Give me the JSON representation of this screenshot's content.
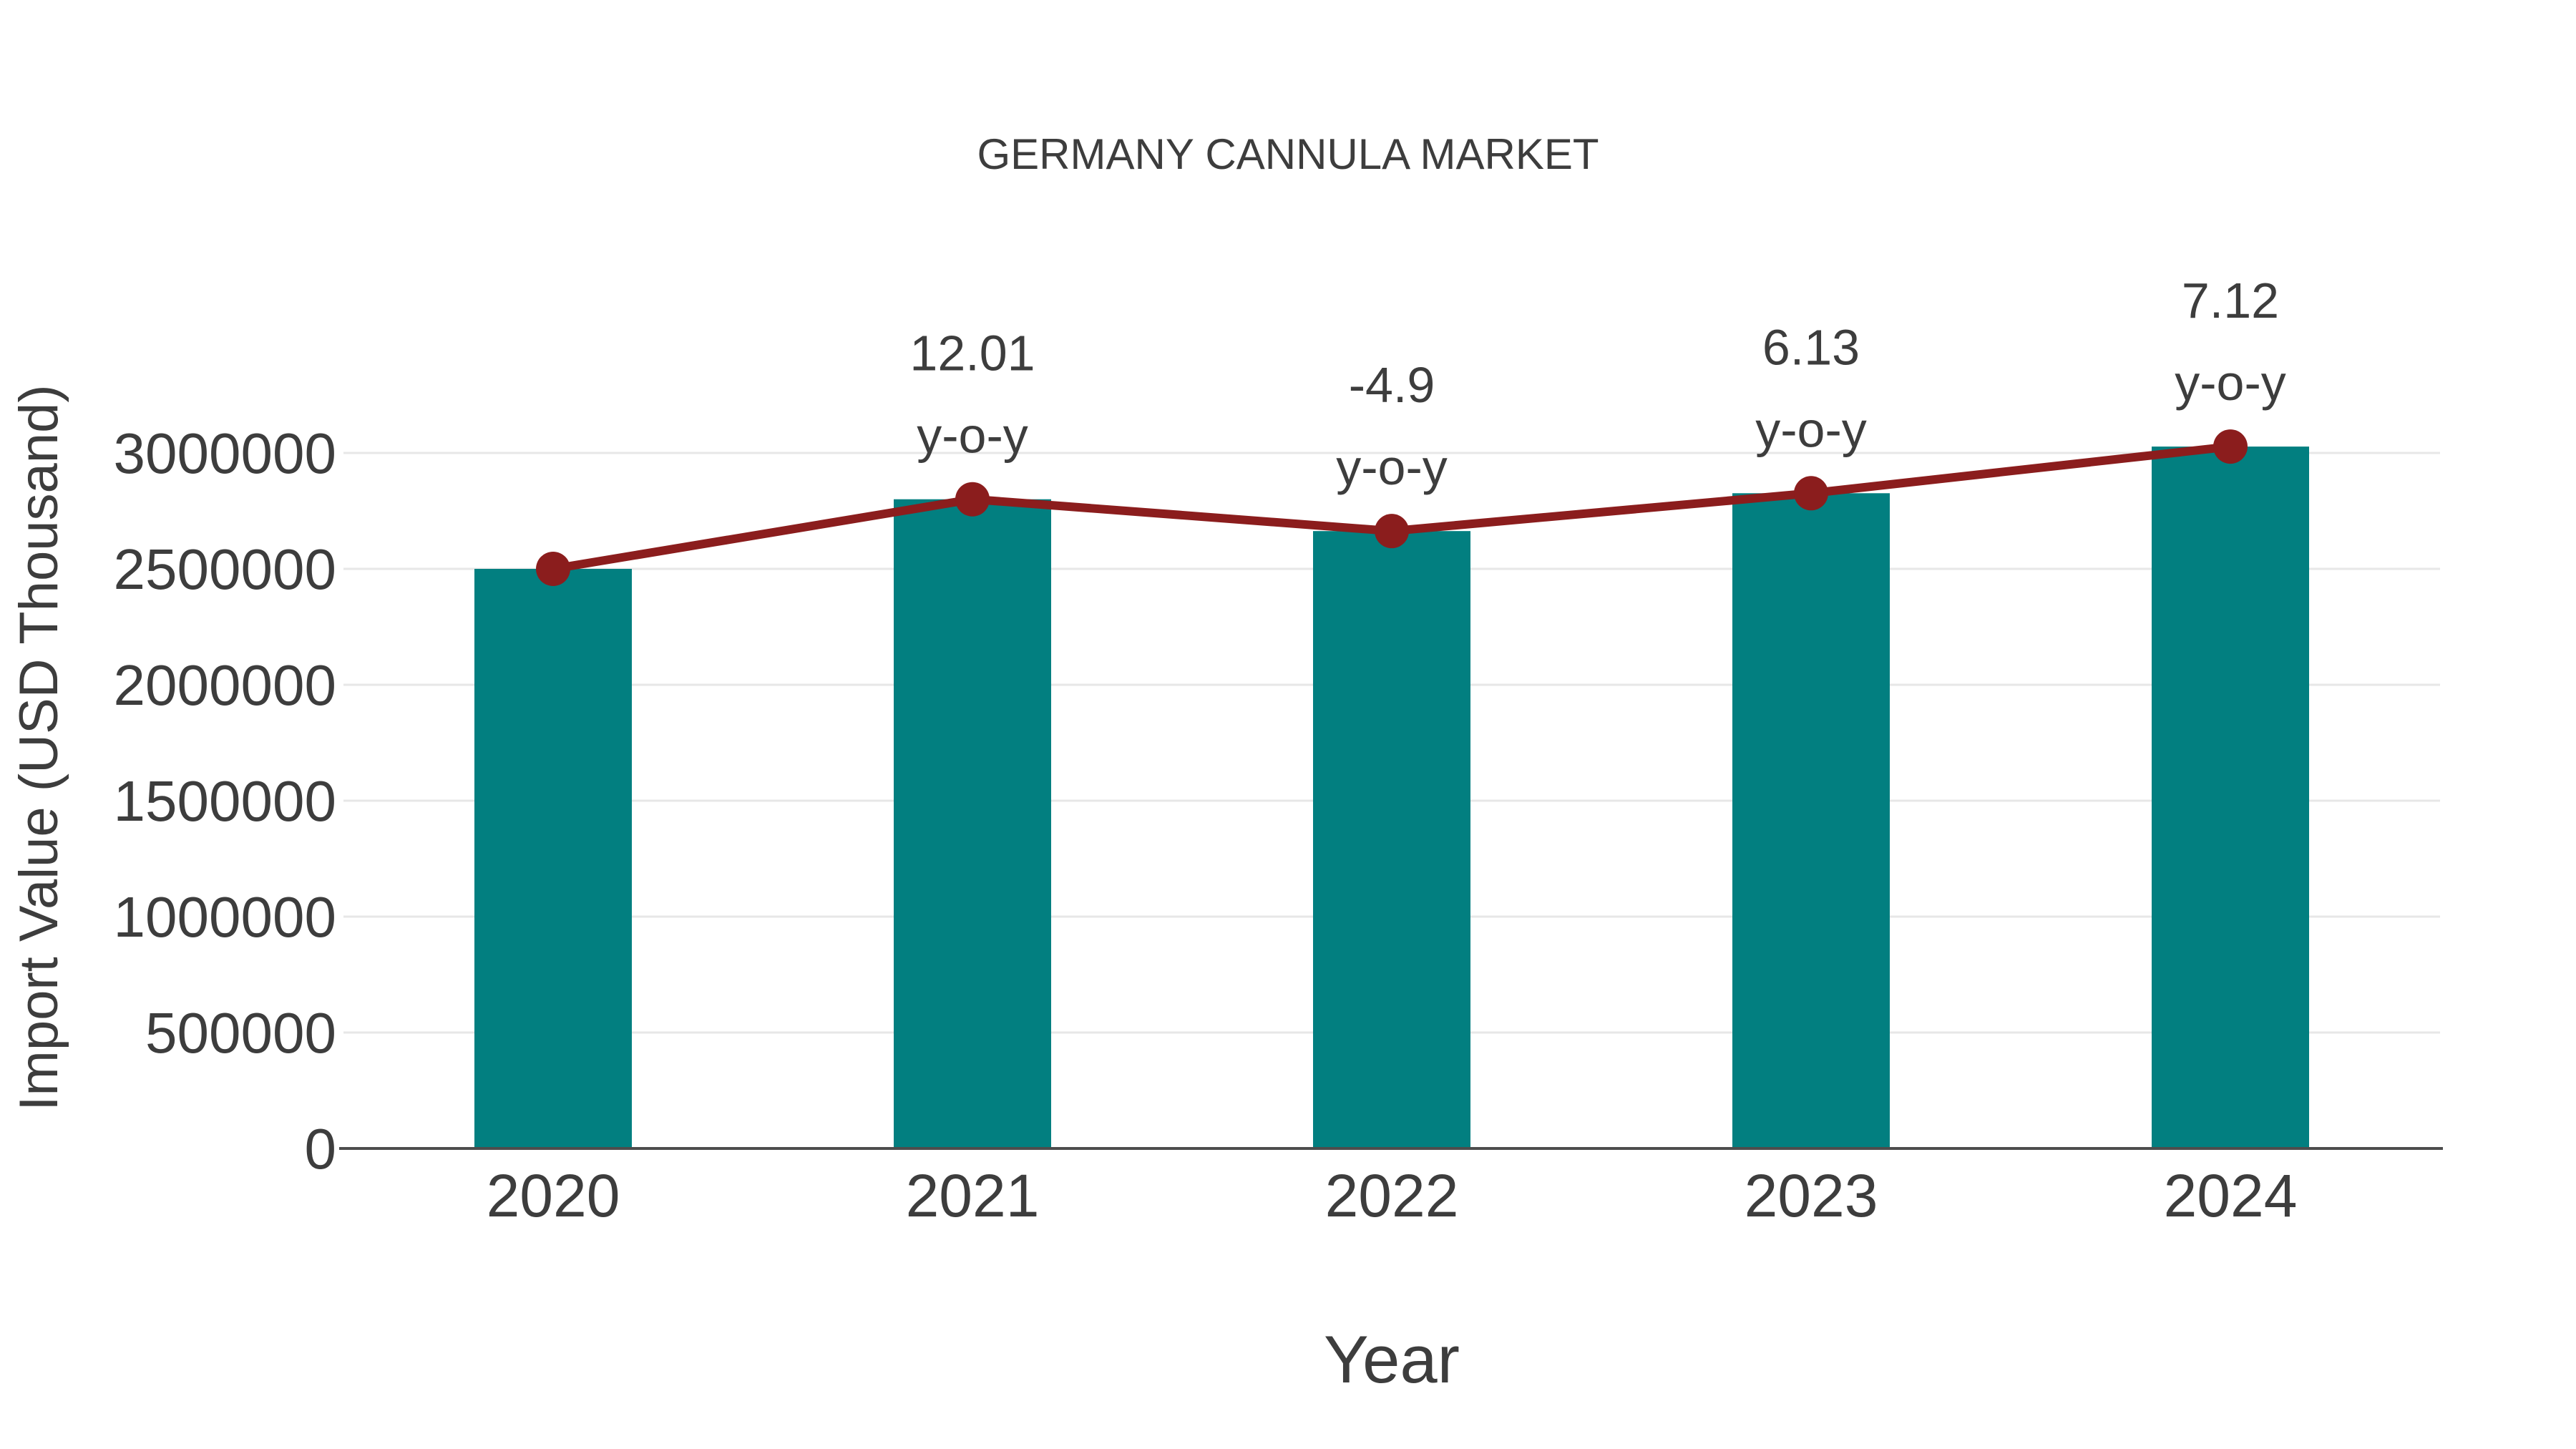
{
  "title": "GERMANY CANNULA MARKET",
  "chart_data": {
    "type": "bar",
    "title": "GERMANY CANNULA MARKET",
    "xlabel": "Year",
    "ylabel": "Import Value (USD Thousand)",
    "categories": [
      "2020",
      "2021",
      "2022",
      "2023",
      "2024"
    ],
    "series": [
      {
        "name": "Import Value bars",
        "type": "bar",
        "color": "#027F80",
        "values": [
          2500000,
          2800250,
          2663038,
          2826282,
          3027513
        ]
      },
      {
        "name": "Import Value trend line",
        "type": "line",
        "color": "#8B1D1D",
        "values": [
          2500000,
          2800250,
          2663038,
          2826282,
          3027513
        ]
      }
    ],
    "annotations": [
      {
        "category": "2021",
        "value_label": "12.01",
        "suffix": "y-o-y",
        "yoy_percent": 12.01
      },
      {
        "category": "2022",
        "value_label": "-4.9",
        "suffix": "y-o-y",
        "yoy_percent": -4.9
      },
      {
        "category": "2023",
        "value_label": "6.13",
        "suffix": "y-o-y",
        "yoy_percent": 6.13
      },
      {
        "category": "2024",
        "value_label": "7.12",
        "suffix": "y-o-y",
        "yoy_percent": 7.12
      }
    ],
    "yticks": [
      0,
      500000,
      1000000,
      1500000,
      2000000,
      2500000,
      3000000
    ],
    "ylim": [
      0,
      3100000
    ],
    "grid": true,
    "legend": "none",
    "colors": {
      "bar": "#027F80",
      "line": "#8B1D1D",
      "marker": "#8B1D1D",
      "text": "#3D3D3D",
      "grid": "#E7E7E7",
      "axis": "#4D4D4D",
      "background": "#FFFFFF"
    }
  }
}
